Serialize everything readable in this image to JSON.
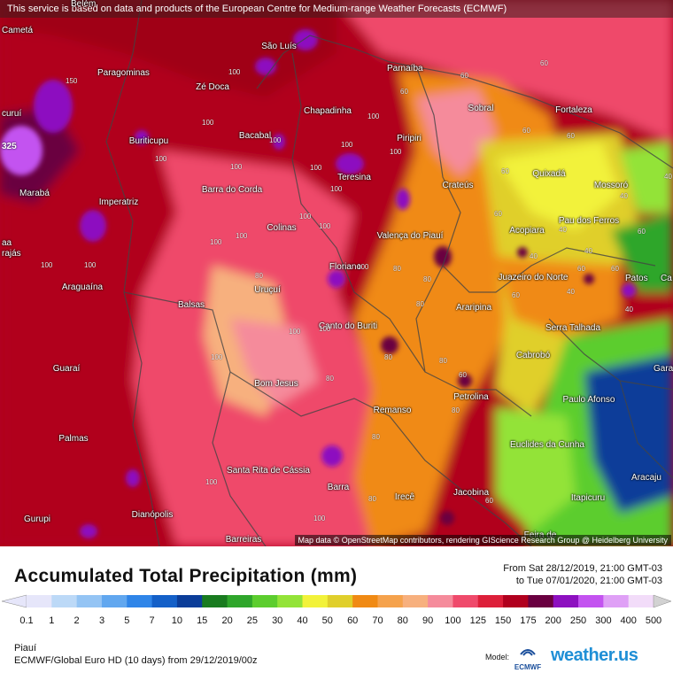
{
  "map": {
    "notice": "This service is based on data and products of the European Centre for Medium-range Weather Forecasts (ECMWF)",
    "attribution": "Map data © OpenStreetMap contributors, rendering GIScience Research Group @ Heidelberg University",
    "edge_value": "325",
    "cities": [
      {
        "name": "Cametá",
        "key": "cameta"
      },
      {
        "name": "Belém",
        "key": "belem"
      },
      {
        "name": "São Luís",
        "key": "sao-luis"
      },
      {
        "name": "Parnaíba",
        "key": "parnaiba"
      },
      {
        "name": "Paragominas",
        "key": "paragominas"
      },
      {
        "name": "Zé Doca",
        "key": "ze-doca"
      },
      {
        "name": "Chapadinha",
        "key": "chapadinha"
      },
      {
        "name": "Sobral",
        "key": "sobral"
      },
      {
        "name": "Fortaleza",
        "key": "fortaleza"
      },
      {
        "name": "curuí",
        "key": "curui"
      },
      {
        "name": "Buriticupu",
        "key": "buriticupu"
      },
      {
        "name": "Bacabal",
        "key": "bacabal"
      },
      {
        "name": "Piripiri",
        "key": "piripiri"
      },
      {
        "name": "Quixadá",
        "key": "quixada"
      },
      {
        "name": "Teresina",
        "key": "teresina"
      },
      {
        "name": "Crateús",
        "key": "crateus"
      },
      {
        "name": "Mossoró",
        "key": "mossoro"
      },
      {
        "name": "Marabá",
        "key": "maraba"
      },
      {
        "name": "Barra do Corda",
        "key": "barra-do-corda"
      },
      {
        "name": "Imperatriz",
        "key": "imperatriz"
      },
      {
        "name": "Pau dos Ferros",
        "key": "pau-dos-ferros"
      },
      {
        "name": "Colinas",
        "key": "colinas"
      },
      {
        "name": "Acopiara",
        "key": "acopiara"
      },
      {
        "name": "Valença do Piauí",
        "key": "valenca-do-piaui"
      },
      {
        "name": "aa",
        "key": "aa"
      },
      {
        "name": "rajás",
        "key": "rajas"
      },
      {
        "name": "Floriano",
        "key": "floriano"
      },
      {
        "name": "Patos",
        "key": "patos"
      },
      {
        "name": "Ca",
        "key": "ca"
      },
      {
        "name": "Araguaína",
        "key": "araguaina"
      },
      {
        "name": "Juazeiro do Norte",
        "key": "juazeiro-do-norte"
      },
      {
        "name": "Uruçuí",
        "key": "urucui"
      },
      {
        "name": "Balsas",
        "key": "balsas"
      },
      {
        "name": "Araripina",
        "key": "araripina"
      },
      {
        "name": "Serra Talhada",
        "key": "serra-talhada"
      },
      {
        "name": "Canto do Buriti",
        "key": "canto-do-buriti"
      },
      {
        "name": "Cabrobó",
        "key": "cabrobo"
      },
      {
        "name": "Gara",
        "key": "gara"
      },
      {
        "name": "Guaraí",
        "key": "guarai"
      },
      {
        "name": "Bom Jesus",
        "key": "bom-jesus"
      },
      {
        "name": "Paulo Afonso",
        "key": "paulo-afonso"
      },
      {
        "name": "Petrolina",
        "key": "petrolina"
      },
      {
        "name": "Remanso",
        "key": "remanso"
      },
      {
        "name": "Palmas",
        "key": "palmas"
      },
      {
        "name": "Euclides da Cunha",
        "key": "euclides-da-cunha"
      },
      {
        "name": "Santa Rita de Cássia",
        "key": "santa-rita-de-cassia"
      },
      {
        "name": "Aracaju",
        "key": "aracaju"
      },
      {
        "name": "Barra",
        "key": "barra"
      },
      {
        "name": "Irecê",
        "key": "irece"
      },
      {
        "name": "Jacobina",
        "key": "jacobina"
      },
      {
        "name": "Itapicuru",
        "key": "itapicuru"
      },
      {
        "name": "Gurupi",
        "key": "gurupi"
      },
      {
        "name": "Dianópolis",
        "key": "dianopolis"
      },
      {
        "name": "Barreiras",
        "key": "barreiras"
      },
      {
        "name": "Feira de",
        "key": "feira-de"
      }
    ],
    "contour_values": [
      "150",
      "100",
      "100",
      "100",
      "100",
      "100",
      "100",
      "100",
      "100",
      "100",
      "100",
      "100",
      "100",
      "100",
      "100",
      "100",
      "100",
      "100",
      "100",
      "100",
      "100",
      "80",
      "80",
      "80",
      "80",
      "80",
      "80",
      "80",
      "80",
      "80",
      "80",
      "60",
      "60",
      "60",
      "60",
      "60",
      "60",
      "60",
      "60",
      "60",
      "60",
      "60",
      "40",
      "40",
      "40",
      "40",
      "40",
      "40",
      "40",
      "60",
      "60",
      "100",
      "100"
    ]
  },
  "legend": {
    "title": "Accumulated Total Precipitation (mm)",
    "from": "From Sat 28/12/2019, 21:00 GMT-03",
    "to": "to Tue 07/01/2020, 21:00 GMT-03",
    "ticks": [
      "0.1",
      "1",
      "2",
      "3",
      "5",
      "7",
      "10",
      "15",
      "20",
      "25",
      "30",
      "40",
      "50",
      "60",
      "70",
      "80",
      "90",
      "100",
      "125",
      "150",
      "175",
      "200",
      "250",
      "300",
      "400",
      "500"
    ],
    "colors": [
      "#e6e6fa",
      "#bcd9f7",
      "#94c4f4",
      "#61a7ef",
      "#2f85e8",
      "#1460c8",
      "#0b3d99",
      "#197b1f",
      "#2fa62b",
      "#5ccd2e",
      "#93e338",
      "#f2f23a",
      "#e0cf2b",
      "#f08a14",
      "#f5a24c",
      "#f7b07e",
      "#f58b9b",
      "#ef4a6b",
      "#dd1f3a",
      "#b1001e",
      "#6a0040",
      "#8d10c0",
      "#c353f0",
      "#dfa0f6",
      "#f2dcf9",
      "#d2d2d2"
    ],
    "region": "Piauí",
    "model_run": "ECMWF/Global Euro HD (10 days) from 29/12/2019/00z",
    "model_label": "Model:",
    "ecmwf_logo_text": "ECMWF",
    "brand": "weather.us"
  }
}
